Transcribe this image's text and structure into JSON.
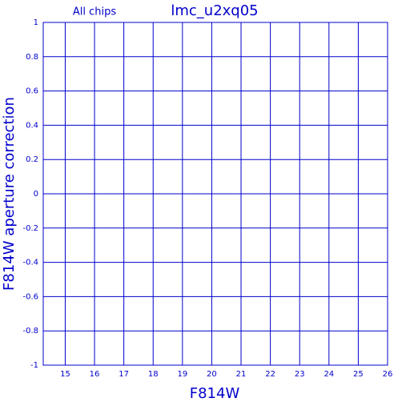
{
  "chart_data": {
    "type": "scatter",
    "title": "lmc_u2xq05",
    "subtitle": "All chips",
    "x_label": "F814W",
    "y_label": "F814W aperture correction",
    "xlim": [
      14.25,
      26
    ],
    "ylim": [
      -1,
      1
    ],
    "xticks": [
      15,
      16,
      17,
      18,
      19,
      20,
      21,
      22,
      23,
      24,
      25,
      26
    ],
    "yticks": [
      -1,
      -0.8,
      -0.6,
      -0.4,
      -0.2,
      0,
      0.2,
      0.4,
      0.6,
      0.8,
      1
    ],
    "grid": true,
    "color": "#0000cc"
  }
}
